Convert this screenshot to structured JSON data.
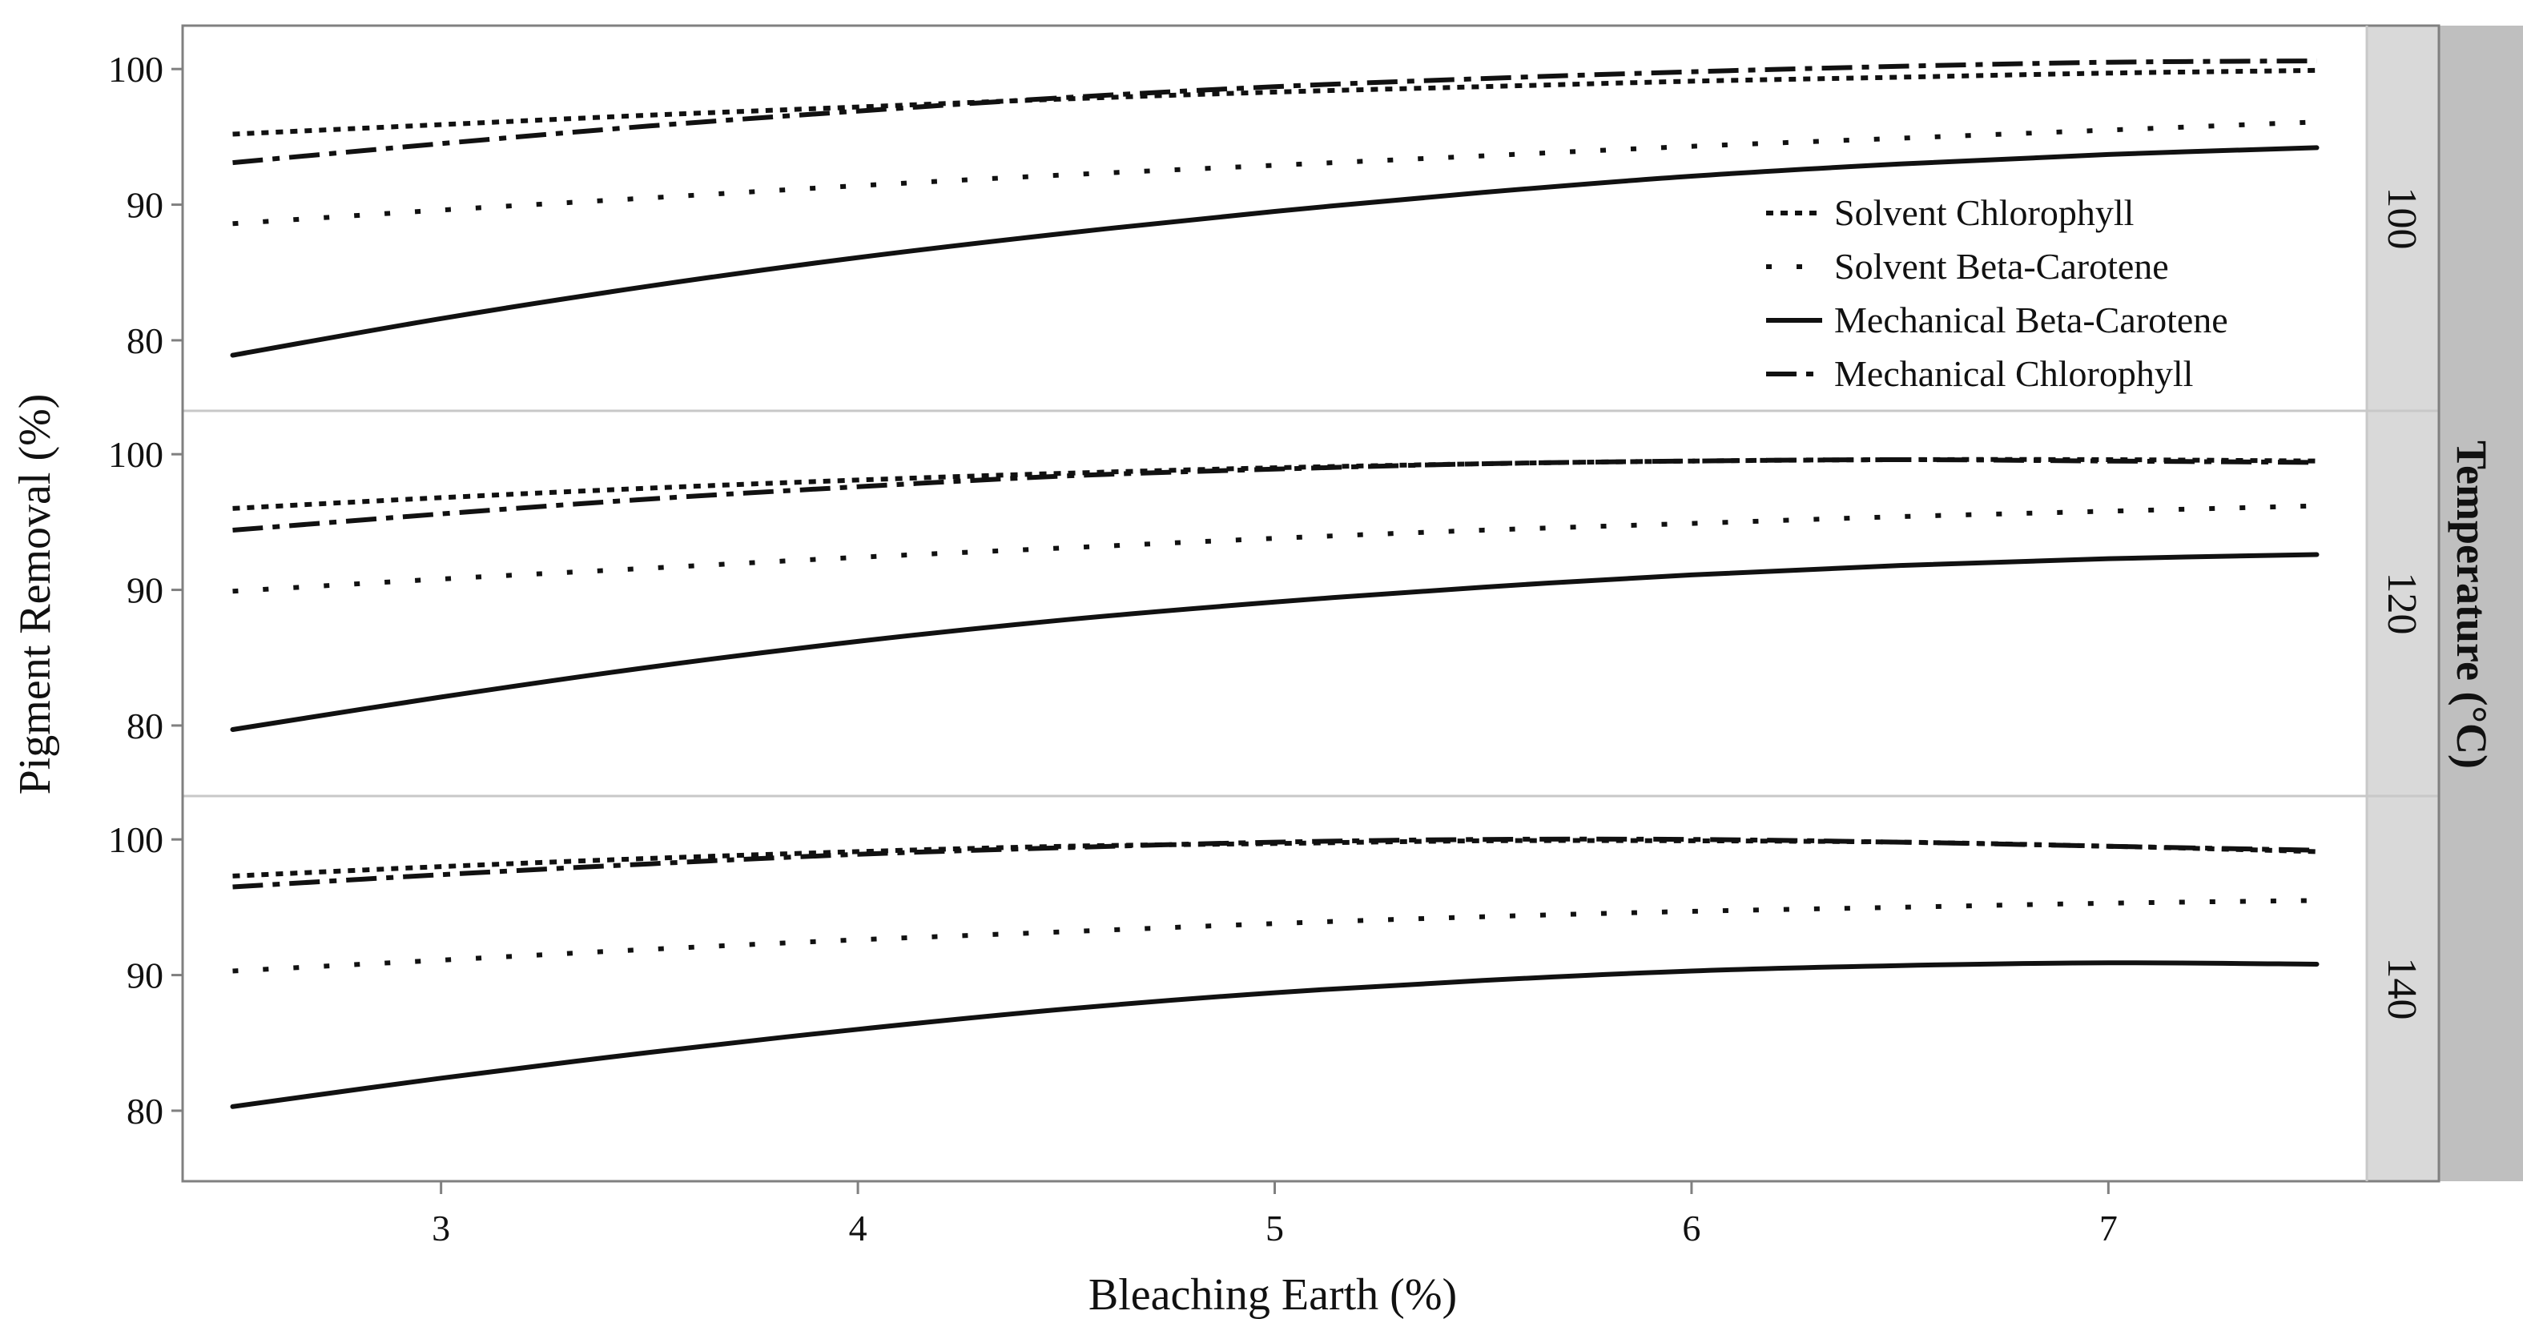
{
  "chart_data": {
    "type": "line",
    "xlabel": "Bleaching Earth (%)",
    "ylabel": "Pigment Removal (%)",
    "facet_title": "Temperature (°C)",
    "xlim": [
      2.38,
      7.62
    ],
    "ylim": [
      74.8,
      103.2
    ],
    "x_ticks": [
      3,
      4,
      5,
      6,
      7
    ],
    "y_ticks": [
      80,
      90,
      100
    ],
    "grid": false,
    "legend_placement": "inside top-right of first panel",
    "legend": [
      {
        "series": "Solvent Chlorophyll",
        "label": "Solvent Chlorophyll"
      },
      {
        "series": "Solvent Beta-Carotene",
        "label": "Solvent Beta-Carotene"
      },
      {
        "series": "Mechanical Beta-Carotene",
        "label": "Mechanical Beta-Carotene"
      },
      {
        "series": "Mechanical Chlorophyll",
        "label": "Mechanical Chlorophyll"
      }
    ],
    "x": [
      2.5,
      3,
      3.5,
      4,
      4.5,
      5,
      5.5,
      6,
      6.5,
      7,
      7.5
    ],
    "panels": [
      {
        "strip_label": "100",
        "series": [
          {
            "name": "Solvent Chlorophyll",
            "style": "dense-dot",
            "values": [
              95.2,
              95.9,
              96.6,
              97.2,
              97.8,
              98.3,
              98.7,
              99.1,
              99.4,
              99.7,
              99.9
            ]
          },
          {
            "name": "Solvent Beta-Carotene",
            "style": "sparse-dot",
            "values": [
              88.6,
              89.6,
              90.5,
              91.4,
              92.2,
              92.9,
              93.6,
              94.3,
              94.9,
              95.5,
              96.1
            ]
          },
          {
            "name": "Mechanical Beta-Carotene",
            "style": "solid",
            "values": [
              78.9,
              81.6,
              84.0,
              86.1,
              87.9,
              89.5,
              90.9,
              92.1,
              93.0,
              93.7,
              94.2
            ]
          },
          {
            "name": "Mechanical Chlorophyll",
            "style": "dash-dot",
            "values": [
              93.1,
              94.5,
              95.8,
              96.9,
              97.9,
              98.7,
              99.3,
              99.8,
              100.2,
              100.5,
              100.6
            ]
          }
        ]
      },
      {
        "strip_label": "120",
        "series": [
          {
            "name": "Solvent Chlorophyll",
            "style": "dense-dot",
            "values": [
              96.0,
              96.8,
              97.5,
              98.1,
              98.6,
              99.0,
              99.3,
              99.5,
              99.6,
              99.6,
              99.5
            ]
          },
          {
            "name": "Solvent Beta-Carotene",
            "style": "sparse-dot",
            "values": [
              89.9,
              90.8,
              91.6,
              92.4,
              93.1,
              93.8,
              94.4,
              94.9,
              95.4,
              95.8,
              96.2
            ]
          },
          {
            "name": "Mechanical Beta-Carotene",
            "style": "solid",
            "values": [
              79.7,
              82.1,
              84.3,
              86.2,
              87.8,
              89.1,
              90.2,
              91.1,
              91.8,
              92.3,
              92.6
            ]
          },
          {
            "name": "Mechanical Chlorophyll",
            "style": "dash-dot",
            "values": [
              94.4,
              95.6,
              96.7,
              97.6,
              98.4,
              98.9,
              99.3,
              99.5,
              99.6,
              99.5,
              99.4
            ]
          }
        ]
      },
      {
        "strip_label": "140",
        "series": [
          {
            "name": "Solvent Chlorophyll",
            "style": "dense-dot",
            "values": [
              97.3,
              98.0,
              98.6,
              99.1,
              99.5,
              99.7,
              99.9,
              99.9,
              99.8,
              99.5,
              99.1
            ]
          },
          {
            "name": "Solvent Beta-Carotene",
            "style": "sparse-dot",
            "values": [
              90.3,
              91.1,
              91.9,
              92.6,
              93.2,
              93.8,
              94.3,
              94.7,
              95.0,
              95.3,
              95.5
            ]
          },
          {
            "name": "Mechanical Beta-Carotene",
            "style": "solid",
            "values": [
              80.3,
              82.4,
              84.3,
              86.0,
              87.5,
              88.7,
              89.6,
              90.3,
              90.7,
              90.9,
              90.8
            ]
          },
          {
            "name": "Mechanical Chlorophyll",
            "style": "dash-dot",
            "values": [
              96.5,
              97.4,
              98.2,
              98.9,
              99.4,
              99.8,
              100.0,
              100.0,
              99.8,
              99.5,
              99.2
            ]
          }
        ]
      }
    ],
    "colors": {
      "line": "#111111",
      "strip_fill": "#d9d9d9",
      "group_strip_fill": "#bfbfbf",
      "frame": "#808080",
      "separator": "#c8c8c8"
    }
  }
}
